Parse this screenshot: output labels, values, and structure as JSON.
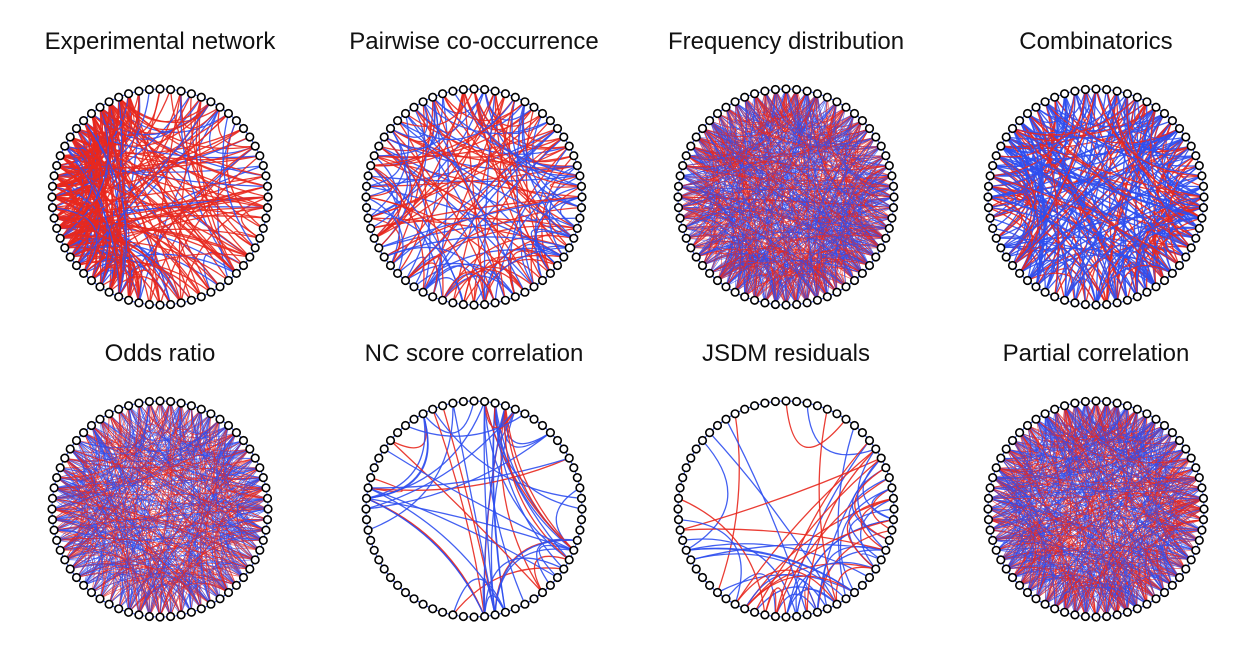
{
  "colors": {
    "positive": "#e8281e",
    "negative": "#2f4ff0",
    "node_fill": "#ffffff",
    "node_stroke": "#000000"
  },
  "panels": [
    {
      "title": "Experimental network",
      "pattern": "dense-red-top",
      "node_count": 64,
      "edge_count": 320,
      "red_fraction": 0.75
    },
    {
      "title": "Pairwise co-occurrence",
      "pattern": "mixed",
      "node_count": 64,
      "edge_count": 170,
      "red_fraction": 0.55
    },
    {
      "title": "Frequency distribution",
      "pattern": "saturated",
      "node_count": 64,
      "edge_count": 900,
      "red_fraction": 0.5
    },
    {
      "title": "Combinatorics",
      "pattern": "mixed",
      "node_count": 64,
      "edge_count": 320,
      "red_fraction": 0.4
    },
    {
      "title": "Odds ratio",
      "pattern": "dense",
      "node_count": 64,
      "edge_count": 700,
      "red_fraction": 0.45
    },
    {
      "title": "NC score correlation",
      "pattern": "sparse",
      "node_count": 64,
      "edge_count": 60,
      "red_fraction": 0.35
    },
    {
      "title": "JSDM residuals",
      "pattern": "sparse-left",
      "node_count": 64,
      "edge_count": 60,
      "red_fraction": 0.4
    },
    {
      "title": "Partial correlation",
      "pattern": "saturated",
      "node_count": 64,
      "edge_count": 900,
      "red_fraction": 0.5
    }
  ]
}
